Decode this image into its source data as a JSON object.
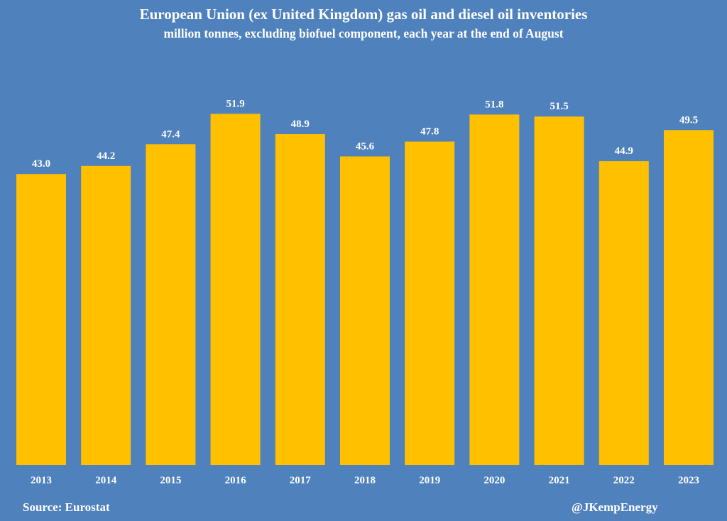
{
  "chart_data": {
    "type": "bar",
    "title": "European Union (ex United Kingdom) gas oil and diesel oil inventories",
    "subtitle": "million tonnes, excluding biofuel component, each year at the end of August",
    "categories": [
      "2013",
      "2014",
      "2015",
      "2016",
      "2017",
      "2018",
      "2019",
      "2020",
      "2021",
      "2022",
      "2023"
    ],
    "values": [
      43.0,
      44.2,
      47.4,
      51.9,
      48.9,
      45.6,
      47.8,
      51.8,
      51.5,
      44.9,
      49.5
    ],
    "xlabel": "",
    "ylabel": "",
    "ylim": [
      0,
      54
    ],
    "grid": false,
    "bar_color": "#ffc000",
    "background_color": "#4f81bd"
  },
  "footer": {
    "source": "Source: Eurostat",
    "credit": "@JKempEnergy"
  }
}
